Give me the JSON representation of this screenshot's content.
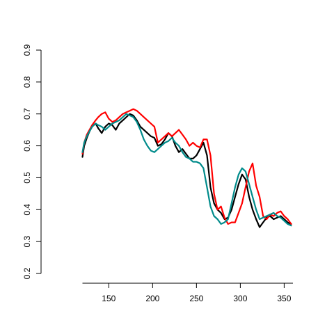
{
  "chart_data": {
    "type": "line",
    "title": "",
    "xlabel": "",
    "ylabel": "",
    "xlim": [
      120,
      360
    ],
    "ylim": [
      0.2,
      0.9
    ],
    "x_ticks": [
      150,
      200,
      250,
      300,
      350
    ],
    "y_ticks": [
      0.2,
      0.3,
      0.4,
      0.5,
      0.6,
      0.7,
      0.8,
      0.9
    ],
    "grid": false,
    "legend": "none",
    "series": [
      {
        "color": "#000000",
        "x": [
          120,
          122,
          125,
          128,
          131,
          135,
          138,
          142,
          146,
          150,
          154,
          158,
          162,
          166,
          170,
          174,
          178,
          182,
          186,
          190,
          194,
          198,
          202,
          206,
          210,
          214,
          218,
          222,
          226,
          230,
          234,
          238,
          242,
          246,
          250,
          254,
          258,
          262,
          266,
          270,
          274,
          278,
          282,
          286,
          290,
          294,
          298,
          302,
          306,
          310,
          314,
          318,
          322,
          326,
          330,
          334,
          338,
          342,
          346,
          350,
          354,
          358
        ],
        "y": [
          0.565,
          0.6,
          0.625,
          0.645,
          0.66,
          0.67,
          0.655,
          0.64,
          0.66,
          0.67,
          0.665,
          0.65,
          0.67,
          0.68,
          0.69,
          0.7,
          0.695,
          0.68,
          0.66,
          0.65,
          0.64,
          0.63,
          0.625,
          0.6,
          0.605,
          0.62,
          0.64,
          0.63,
          0.6,
          0.58,
          0.59,
          0.575,
          0.56,
          0.56,
          0.57,
          0.59,
          0.61,
          0.57,
          0.47,
          0.42,
          0.4,
          0.39,
          0.37,
          0.375,
          0.4,
          0.44,
          0.48,
          0.51,
          0.495,
          0.44,
          0.4,
          0.37,
          0.345,
          0.36,
          0.375,
          0.38,
          0.37,
          0.375,
          0.38,
          0.37,
          0.36,
          0.355
        ]
      },
      {
        "color": "#ff0000",
        "x": [
          120,
          122,
          125,
          128,
          131,
          135,
          138,
          142,
          146,
          150,
          154,
          158,
          162,
          166,
          170,
          174,
          178,
          182,
          186,
          190,
          194,
          198,
          202,
          206,
          210,
          214,
          218,
          222,
          226,
          230,
          234,
          238,
          242,
          246,
          250,
          254,
          258,
          262,
          266,
          270,
          274,
          278,
          282,
          286,
          290,
          294,
          298,
          302,
          306,
          310,
          314,
          318,
          322,
          326,
          330,
          334,
          338,
          342,
          346,
          350,
          354,
          358
        ],
        "y": [
          0.575,
          0.61,
          0.635,
          0.65,
          0.665,
          0.68,
          0.69,
          0.7,
          0.705,
          0.685,
          0.675,
          0.68,
          0.69,
          0.7,
          0.705,
          0.71,
          0.715,
          0.71,
          0.7,
          0.69,
          0.68,
          0.67,
          0.66,
          0.61,
          0.62,
          0.63,
          0.64,
          0.63,
          0.64,
          0.65,
          0.635,
          0.62,
          0.6,
          0.61,
          0.6,
          0.595,
          0.62,
          0.62,
          0.57,
          0.45,
          0.4,
          0.41,
          0.375,
          0.355,
          0.36,
          0.36,
          0.39,
          0.42,
          0.47,
          0.52,
          0.545,
          0.475,
          0.44,
          0.38,
          0.37,
          0.385,
          0.38,
          0.39,
          0.395,
          0.38,
          0.37,
          0.355
        ]
      },
      {
        "color": "#008b8b",
        "x": [
          120,
          122,
          125,
          128,
          131,
          135,
          138,
          142,
          146,
          150,
          154,
          158,
          162,
          166,
          170,
          174,
          178,
          182,
          186,
          190,
          194,
          198,
          202,
          206,
          210,
          214,
          218,
          222,
          226,
          230,
          234,
          238,
          242,
          246,
          250,
          254,
          258,
          262,
          266,
          270,
          274,
          278,
          282,
          286,
          290,
          294,
          298,
          302,
          306,
          310,
          314,
          318,
          322,
          326,
          330,
          334,
          338,
          342,
          346,
          350,
          354,
          358
        ],
        "y": [
          0.58,
          0.61,
          0.63,
          0.645,
          0.66,
          0.67,
          0.665,
          0.66,
          0.65,
          0.66,
          0.67,
          0.675,
          0.68,
          0.69,
          0.7,
          0.695,
          0.69,
          0.675,
          0.65,
          0.62,
          0.6,
          0.585,
          0.58,
          0.59,
          0.6,
          0.61,
          0.615,
          0.625,
          0.61,
          0.6,
          0.58,
          0.565,
          0.56,
          0.55,
          0.55,
          0.545,
          0.53,
          0.47,
          0.41,
          0.38,
          0.37,
          0.355,
          0.36,
          0.37,
          0.42,
          0.47,
          0.51,
          0.53,
          0.52,
          0.48,
          0.44,
          0.4,
          0.37,
          0.375,
          0.38,
          0.385,
          0.39,
          0.38,
          0.375,
          0.365,
          0.355,
          0.35
        ]
      }
    ]
  }
}
